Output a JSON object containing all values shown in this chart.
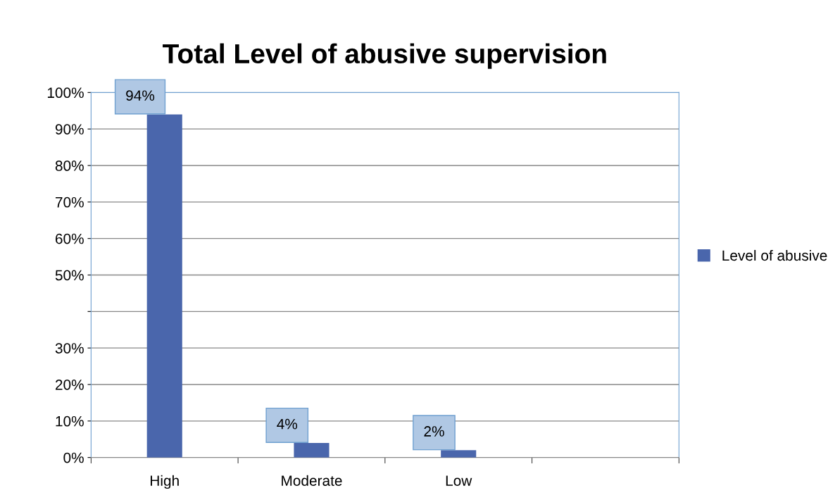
{
  "chart_data": {
    "type": "bar",
    "title": "Total Level of abusive supervision",
    "categories": [
      "High",
      "Moderate",
      "Low",
      null
    ],
    "series": [
      {
        "name": "Level of abusive",
        "color": "#4a66ac",
        "values": [
          94,
          4,
          2,
          null
        ],
        "value_labels": [
          "94%",
          "4%",
          "2%",
          null
        ]
      }
    ],
    "ylim": [
      0,
      100
    ],
    "yticks": [
      {
        "value": 0,
        "label": "0%"
      },
      {
        "value": 10,
        "label": "10%"
      },
      {
        "value": 20,
        "label": "20%"
      },
      {
        "value": 30,
        "label": "30%"
      },
      {
        "value": 40,
        "label": null
      },
      {
        "value": 50,
        "label": "50%"
      },
      {
        "value": 60,
        "label": "60%"
      },
      {
        "value": 70,
        "label": "70%"
      },
      {
        "value": 80,
        "label": "80%"
      },
      {
        "value": 90,
        "label": "90%"
      },
      {
        "value": 100,
        "label": "100%"
      }
    ],
    "grid": "y",
    "legend": "right"
  }
}
